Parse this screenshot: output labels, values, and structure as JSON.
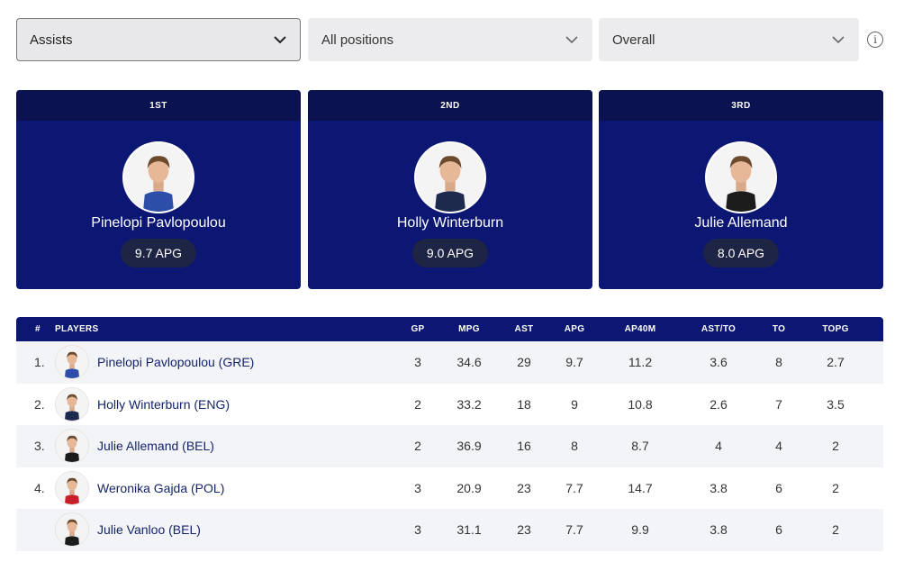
{
  "filters": {
    "stat": "Assists",
    "position": "All positions",
    "period": "Overall",
    "info_symbol": "i"
  },
  "podium": [
    {
      "rank": "1ST",
      "name": "Pinelopi Pavlopoulou",
      "stat": "9.7 APG",
      "jersey_color": "#2d4ea8"
    },
    {
      "rank": "2ND",
      "name": "Holly Winterburn",
      "stat": "9.0 APG",
      "jersey_color": "#1d2a4e"
    },
    {
      "rank": "3RD",
      "name": "Julie Allemand",
      "stat": "8.0 APG",
      "jersey_color": "#1c1c1c"
    }
  ],
  "table": {
    "headers": {
      "num": "#",
      "players": "PLAYERS",
      "gp": "GP",
      "mpg": "MPG",
      "ast": "AST",
      "apg": "APG",
      "ap40m": "AP40M",
      "astto": "AST/TO",
      "to": "TO",
      "topg": "TOPG"
    },
    "rows": [
      {
        "rank": "1.",
        "player": "Pinelopi Pavlopoulou (GRE)",
        "gp": "3",
        "mpg": "34.6",
        "ast": "29",
        "apg": "9.7",
        "ap40m": "11.2",
        "astto": "3.6",
        "to": "8",
        "topg": "2.7",
        "jersey_color": "#2d4ea8"
      },
      {
        "rank": "2.",
        "player": "Holly Winterburn (ENG)",
        "gp": "2",
        "mpg": "33.2",
        "ast": "18",
        "apg": "9",
        "ap40m": "10.8",
        "astto": "2.6",
        "to": "7",
        "topg": "3.5",
        "jersey_color": "#1d2a4e"
      },
      {
        "rank": "3.",
        "player": "Julie Allemand (BEL)",
        "gp": "2",
        "mpg": "36.9",
        "ast": "16",
        "apg": "8",
        "ap40m": "8.7",
        "astto": "4",
        "to": "4",
        "topg": "2",
        "jersey_color": "#1c1c1c"
      },
      {
        "rank": "4.",
        "player": "Weronika Gajda (POL)",
        "gp": "3",
        "mpg": "20.9",
        "ast": "23",
        "apg": "7.7",
        "ap40m": "14.7",
        "astto": "3.8",
        "to": "6",
        "topg": "2",
        "jersey_color": "#c8202a"
      },
      {
        "rank": "",
        "player": "Julie Vanloo (BEL)",
        "gp": "3",
        "mpg": "31.1",
        "ast": "23",
        "apg": "7.7",
        "ap40m": "9.9",
        "astto": "3.8",
        "to": "6",
        "topg": "2",
        "jersey_color": "#1c1c1c"
      }
    ]
  },
  "colors": {
    "navy": "#0c1773",
    "navy_dark": "#0a1250",
    "link": "#15246b"
  }
}
